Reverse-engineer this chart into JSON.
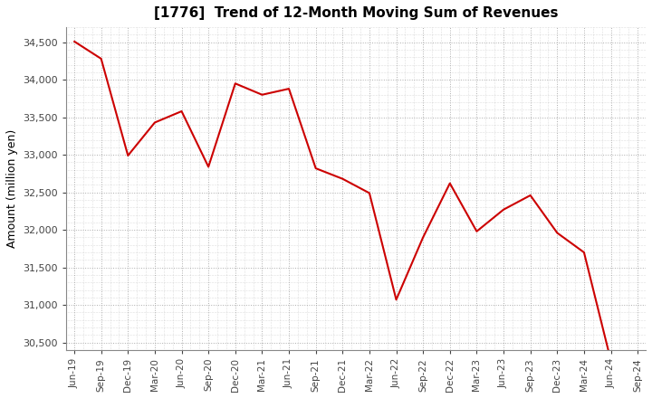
{
  "title": "[1776]  Trend of 12-Month Moving Sum of Revenues",
  "ylabel": "Amount (million yen)",
  "line_color": "#cc0000",
  "background_color": "#ffffff",
  "plot_bg_color": "#ffffff",
  "grid_color": "#999999",
  "ylim": [
    30400,
    34700
  ],
  "yticks": [
    30500,
    31000,
    31500,
    32000,
    32500,
    33000,
    33500,
    34000,
    34500
  ],
  "x_labels": [
    "Jun-19",
    "Sep-19",
    "Dec-19",
    "Mar-20",
    "Jun-20",
    "Sep-20",
    "Dec-20",
    "Mar-21",
    "Jun-21",
    "Sep-21",
    "Dec-21",
    "Mar-22",
    "Jun-22",
    "Sep-22",
    "Dec-22",
    "Mar-23",
    "Jun-23",
    "Sep-23",
    "Dec-23",
    "Mar-24",
    "Jun-24",
    "Sep-24"
  ],
  "values": [
    34510,
    34280,
    32990,
    33430,
    33580,
    32840,
    33950,
    33800,
    33880,
    32820,
    32680,
    32490,
    31070,
    31900,
    32620,
    31980,
    32270,
    32460,
    31960,
    31700,
    30260,
    null
  ]
}
